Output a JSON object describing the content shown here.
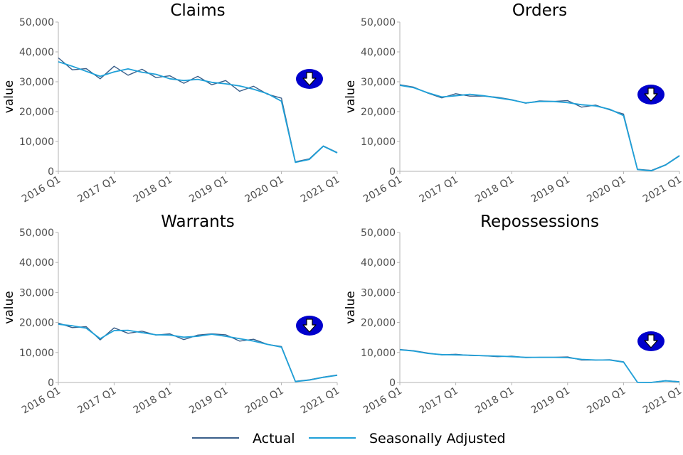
{
  "legend": {
    "position": "bottom",
    "items": [
      {
        "label": "Actual",
        "color": "#3a5f8a"
      },
      {
        "label": "Seasonally Adjusted",
        "color": "#1fa0d8"
      }
    ]
  },
  "colors": {
    "actual": "#3a5f8a",
    "seasonally_adjusted": "#1fa0d8",
    "trend_icon": "#0000cc"
  },
  "chart_data": [
    {
      "type": "line",
      "title": "Claims",
      "ylabel": "value",
      "ylim": [
        0,
        50000
      ],
      "yticks": [
        0,
        10000,
        20000,
        30000,
        40000,
        50000
      ],
      "ytick_labels": [
        "0",
        "10,000",
        "20,000",
        "30,000",
        "40,000",
        "50,000"
      ],
      "xtick_labels": [
        "2016 Q1",
        "2017 Q1",
        "2018 Q1",
        "2019 Q1",
        "2020 Q1",
        "2021 Q1"
      ],
      "x": [
        "2016 Q1",
        "2016 Q2",
        "2016 Q3",
        "2016 Q4",
        "2017 Q1",
        "2017 Q2",
        "2017 Q3",
        "2017 Q4",
        "2018 Q1",
        "2018 Q2",
        "2018 Q3",
        "2018 Q4",
        "2019 Q1",
        "2019 Q2",
        "2019 Q3",
        "2019 Q4",
        "2020 Q1",
        "2020 Q2",
        "2020 Q3",
        "2020 Q4",
        "2021 Q1"
      ],
      "trend_icon": "arrow-down-icon",
      "series": [
        {
          "name": "Actual",
          "values": [
            38000,
            34000,
            34400,
            31000,
            35200,
            32200,
            34200,
            31400,
            32000,
            29500,
            31800,
            29000,
            30400,
            26800,
            28500,
            25800,
            24500,
            3200,
            4200,
            8500,
            6300
          ]
        },
        {
          "name": "Seasonally Adjusted",
          "values": [
            36700,
            35200,
            33500,
            31800,
            33300,
            34300,
            33200,
            32500,
            31000,
            30400,
            30800,
            29800,
            29300,
            28600,
            27500,
            26000,
            23500,
            3000,
            4000,
            8400,
            6200
          ]
        }
      ]
    },
    {
      "type": "line",
      "title": "Orders",
      "ylabel": "value",
      "ylim": [
        0,
        50000
      ],
      "yticks": [
        0,
        10000,
        20000,
        30000,
        40000,
        50000
      ],
      "ytick_labels": [
        "0",
        "10,000",
        "20,000",
        "30,000",
        "40,000",
        "50,000"
      ],
      "xtick_labels": [
        "2016 Q1",
        "2017 Q1",
        "2018 Q1",
        "2019 Q1",
        "2020 Q1",
        "2021 Q1"
      ],
      "x": [
        "2016 Q1",
        "2016 Q2",
        "2016 Q3",
        "2016 Q4",
        "2017 Q1",
        "2017 Q2",
        "2017 Q3",
        "2017 Q4",
        "2018 Q1",
        "2018 Q2",
        "2018 Q3",
        "2018 Q4",
        "2019 Q1",
        "2019 Q2",
        "2019 Q3",
        "2019 Q4",
        "2020 Q1",
        "2020 Q2",
        "2020 Q3",
        "2020 Q4",
        "2021 Q1"
      ],
      "trend_icon": "arrow-down-icon",
      "series": [
        {
          "name": "Actual",
          "values": [
            29000,
            28200,
            26200,
            24600,
            26000,
            25200,
            25200,
            24800,
            24000,
            22800,
            23600,
            23400,
            23700,
            21500,
            22200,
            20600,
            19200,
            700,
            300,
            2200,
            5300
          ]
        },
        {
          "name": "Seasonally Adjusted",
          "values": [
            28800,
            28000,
            26300,
            24900,
            25300,
            25800,
            25300,
            24600,
            23900,
            22900,
            23400,
            23400,
            23000,
            22300,
            21900,
            20800,
            18700,
            600,
            200,
            2100,
            5200
          ]
        }
      ]
    },
    {
      "type": "line",
      "title": "Warrants",
      "ylabel": "value",
      "ylim": [
        0,
        50000
      ],
      "yticks": [
        0,
        10000,
        20000,
        30000,
        40000,
        50000
      ],
      "ytick_labels": [
        "0",
        "10,000",
        "20,000",
        "30,000",
        "40,000",
        "50,000"
      ],
      "xtick_labels": [
        "2016 Q1",
        "2017 Q1",
        "2018 Q1",
        "2019 Q1",
        "2020 Q1",
        "2021 Q1"
      ],
      "x": [
        "2016 Q1",
        "2016 Q2",
        "2016 Q3",
        "2016 Q4",
        "2017 Q1",
        "2017 Q2",
        "2017 Q3",
        "2017 Q4",
        "2018 Q1",
        "2018 Q2",
        "2018 Q3",
        "2018 Q4",
        "2019 Q1",
        "2019 Q2",
        "2019 Q3",
        "2019 Q4",
        "2020 Q1",
        "2020 Q2",
        "2020 Q3",
        "2020 Q4",
        "2021 Q1"
      ],
      "trend_icon": "arrow-down-icon",
      "series": [
        {
          "name": "Actual",
          "values": [
            19800,
            18300,
            18600,
            14200,
            18200,
            16400,
            17100,
            15800,
            16200,
            14300,
            15800,
            16200,
            15900,
            13800,
            14400,
            12700,
            12000,
            400,
            900,
            1800,
            2500
          ]
        },
        {
          "name": "Seasonally Adjusted",
          "values": [
            19400,
            18900,
            18100,
            14600,
            17300,
            17400,
            16600,
            15900,
            15800,
            15100,
            15400,
            16100,
            15400,
            14600,
            13800,
            12700,
            11800,
            300,
            800,
            1700,
            2400
          ]
        }
      ]
    },
    {
      "type": "line",
      "title": "Repossessions",
      "ylabel": "value",
      "ylim": [
        0,
        50000
      ],
      "yticks": [
        0,
        10000,
        20000,
        30000,
        40000,
        50000
      ],
      "ytick_labels": [
        "0",
        "10,000",
        "20,000",
        "30,000",
        "40,000",
        "50,000"
      ],
      "xtick_labels": [
        "2016 Q1",
        "2017 Q1",
        "2018 Q1",
        "2019 Q1",
        "2020 Q1",
        "2021 Q1"
      ],
      "x": [
        "2016 Q1",
        "2016 Q2",
        "2016 Q3",
        "2016 Q4",
        "2017 Q1",
        "2017 Q2",
        "2017 Q3",
        "2017 Q4",
        "2018 Q1",
        "2018 Q2",
        "2018 Q3",
        "2018 Q4",
        "2019 Q1",
        "2019 Q2",
        "2019 Q3",
        "2019 Q4",
        "2020 Q1",
        "2020 Q2",
        "2020 Q3",
        "2020 Q4",
        "2021 Q1"
      ],
      "trend_icon": "arrow-down-icon",
      "series": [
        {
          "name": "Actual",
          "values": [
            11000,
            10600,
            9800,
            9200,
            9400,
            9000,
            8900,
            8600,
            8800,
            8300,
            8400,
            8400,
            8500,
            7500,
            7500,
            7600,
            6900,
            50,
            30,
            600,
            250
          ]
        },
        {
          "name": "Seasonally Adjusted",
          "values": [
            10900,
            10500,
            9700,
            9300,
            9200,
            9100,
            8900,
            8800,
            8600,
            8400,
            8400,
            8400,
            8300,
            7700,
            7500,
            7500,
            6800,
            40,
            20,
            550,
            230
          ]
        }
      ]
    }
  ]
}
